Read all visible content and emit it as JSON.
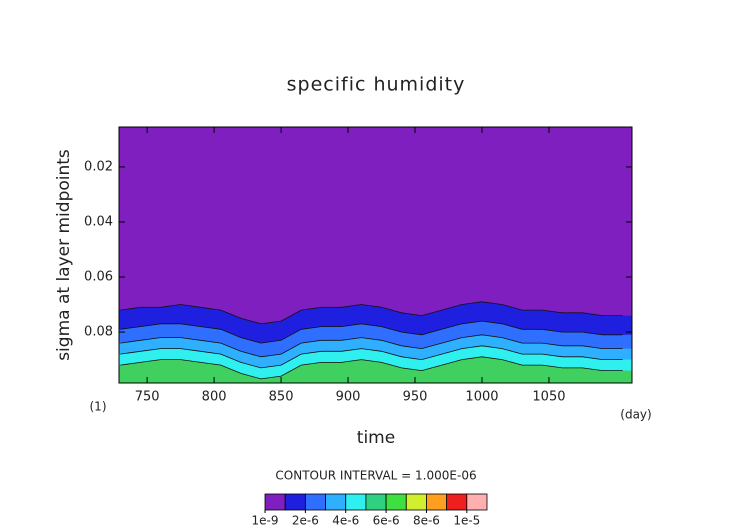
{
  "chart_data": {
    "type": "contour",
    "title": "specific humidity",
    "x_label": "time",
    "y_label": "sigma at layer midpoints",
    "x_unit": "(day)",
    "y_unit": "(1)",
    "contour_note": "CONTOUR INTERVAL = 1.000E-06",
    "xlim": [
      729,
      1112
    ],
    "xticks": [
      750,
      800,
      850,
      900,
      950,
      1000,
      1050
    ],
    "ylim": [
      0.0985,
      0.0055
    ],
    "yticks": [
      0.02,
      0.04,
      0.06,
      0.08
    ],
    "background_color": "#801fbf",
    "x": [
      730,
      745,
      760,
      775,
      790,
      805,
      820,
      835,
      850,
      865,
      880,
      895,
      910,
      925,
      940,
      955,
      970,
      985,
      1000,
      1015,
      1030,
      1045,
      1060,
      1075,
      1090,
      1105
    ],
    "series": [
      {
        "color": "#1f1fe0",
        "values": [
          0.072,
          0.071,
          0.071,
          0.07,
          0.071,
          0.072,
          0.075,
          0.077,
          0.076,
          0.072,
          0.071,
          0.071,
          0.07,
          0.071,
          0.073,
          0.074,
          0.072,
          0.07,
          0.069,
          0.07,
          0.072,
          0.072,
          0.073,
          0.073,
          0.074,
          0.074
        ]
      },
      {
        "color": "#2f6fff",
        "values": [
          0.079,
          0.078,
          0.077,
          0.077,
          0.078,
          0.079,
          0.082,
          0.084,
          0.083,
          0.079,
          0.078,
          0.078,
          0.077,
          0.078,
          0.08,
          0.081,
          0.079,
          0.077,
          0.076,
          0.077,
          0.079,
          0.079,
          0.08,
          0.08,
          0.081,
          0.081
        ]
      },
      {
        "color": "#2fafff",
        "values": [
          0.084,
          0.083,
          0.082,
          0.082,
          0.083,
          0.084,
          0.087,
          0.089,
          0.088,
          0.084,
          0.083,
          0.083,
          0.082,
          0.083,
          0.085,
          0.086,
          0.084,
          0.082,
          0.081,
          0.082,
          0.084,
          0.084,
          0.085,
          0.085,
          0.086,
          0.086
        ]
      },
      {
        "color": "#2fefef",
        "values": [
          0.088,
          0.087,
          0.086,
          0.086,
          0.087,
          0.088,
          0.091,
          0.093,
          0.092,
          0.088,
          0.087,
          0.087,
          0.086,
          0.087,
          0.089,
          0.09,
          0.088,
          0.086,
          0.085,
          0.086,
          0.088,
          0.088,
          0.089,
          0.089,
          0.09,
          0.09
        ]
      },
      {
        "color": "#3fd05f",
        "values": [
          0.092,
          0.091,
          0.09,
          0.09,
          0.091,
          0.092,
          0.095,
          0.097,
          0.096,
          0.092,
          0.091,
          0.091,
          0.09,
          0.091,
          0.093,
          0.094,
          0.092,
          0.09,
          0.089,
          0.09,
          0.092,
          0.092,
          0.093,
          0.093,
          0.094,
          0.094
        ]
      }
    ],
    "colorbar_lim": [
      0,
      1.1e-05
    ],
    "colorbar_colors": [
      "#801fbf",
      "#1f1fe0",
      "#2f6fff",
      "#2fafff",
      "#2fefef",
      "#2fd07f",
      "#3fdf3f",
      "#cfef2f",
      "#ff9f1f",
      "#ef1f1f",
      "#ffafaf"
    ],
    "colorbar_ticks": [
      {
        "value": 1e-09,
        "label": "1e-9"
      },
      {
        "value": 2e-06,
        "label": "2e-6"
      },
      {
        "value": 4e-06,
        "label": "4e-6"
      },
      {
        "value": 6e-06,
        "label": "6e-6"
      },
      {
        "value": 8e-06,
        "label": "8e-6"
      },
      {
        "value": 1e-05,
        "label": "1e-5"
      }
    ]
  }
}
